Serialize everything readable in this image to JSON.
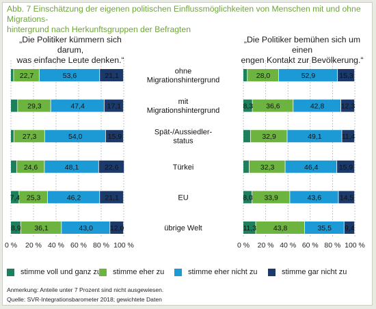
{
  "header": {
    "title_line1": "Abb. 7 Einschätzung der eigenen politischen Einflussmöglichkeiten von Menschen mit und ohne Migrations-",
    "title_line2": "hintergrund nach Herkunftsgruppen der Befragten"
  },
  "colors": {
    "voll": "#1e7f5c",
    "eher": "#6db33f",
    "eher_nicht": "#1c9ad6",
    "gar_nicht": "#1b3a6b"
  },
  "chart_data": [
    {
      "type": "bar",
      "orientation": "horizontal-stacked",
      "title_line1": "„Die Politiker kümmern sich darum,",
      "title_line2": "was einfache Leute denken.“",
      "categories": [
        "ohne Migrationshintergrund",
        "mit Migrationshintergrund",
        "Spät-/Aussiedler-status",
        "Türkei",
        "EU",
        "übrige Welt"
      ],
      "series": [
        {
          "name": "stimme voll und ganz zu",
          "values": [
            2.6,
            6.2,
            2.8,
            5.3,
            7.4,
            8.9
          ],
          "labels": [
            "",
            "",
            "",
            "",
            "7,4",
            "8,9"
          ]
        },
        {
          "name": "stimme eher zu",
          "values": [
            22.7,
            29.3,
            27.3,
            24.6,
            25.3,
            36.1
          ],
          "labels": [
            "22,7",
            "29,3",
            "27,3",
            "24,6",
            "25,3",
            "36,1"
          ]
        },
        {
          "name": "stimme eher nicht zu",
          "values": [
            53.6,
            47.4,
            54.0,
            48.1,
            46.2,
            43.0
          ],
          "labels": [
            "53,6",
            "47,4",
            "54,0",
            "48,1",
            "46,2",
            "43,0"
          ]
        },
        {
          "name": "stimme gar nicht zu",
          "values": [
            21.1,
            17.1,
            15.9,
            22.6,
            21.1,
            12.0
          ],
          "labels": [
            "21,1",
            "17,1",
            "15,9",
            "22,6",
            "21,1",
            "12,0"
          ]
        }
      ],
      "xlim": [
        0,
        100
      ],
      "ticks": [
        "0 %",
        "20 %",
        "40 %",
        "60 %",
        "80 %",
        "100 %"
      ]
    },
    {
      "type": "bar",
      "orientation": "horizontal-stacked",
      "title_line1": "„Die Politiker bemühen sich um einen",
      "title_line2": "engen Kontakt zur Bevölkerung.“",
      "categories": [
        "ohne Migrationshintergrund",
        "mit Migrationshintergrund",
        "Spät-/Aussiedler-status",
        "Türkei",
        "EU",
        "übrige Welt"
      ],
      "series": [
        {
          "name": "stimme voll und ganz zu",
          "values": [
            3.8,
            8.3,
            6.6,
            5.4,
            8.0,
            11.3
          ],
          "labels": [
            "",
            "8,3",
            "",
            "",
            "8,0",
            "11,3"
          ]
        },
        {
          "name": "stimme eher zu",
          "values": [
            28.0,
            36.6,
            32.9,
            32.3,
            33.9,
            43.8
          ],
          "labels": [
            "28,0",
            "36,6",
            "32,9",
            "32,3",
            "33,9",
            "43,8"
          ]
        },
        {
          "name": "stimme eher nicht zu",
          "values": [
            52.9,
            42.8,
            49.1,
            46.4,
            43.6,
            35.5
          ],
          "labels": [
            "52,9",
            "42,8",
            "49,1",
            "46,4",
            "43,6",
            "35,5"
          ]
        },
        {
          "name": "stimme gar nicht zu",
          "values": [
            15.3,
            12.3,
            11.4,
            15.9,
            14.5,
            9.4
          ],
          "labels": [
            "15,3",
            "12,3",
            "11,4",
            "15,9",
            "14,5",
            "9,4"
          ]
        }
      ],
      "xlim": [
        0,
        100
      ],
      "ticks": [
        "0 %",
        "20 %",
        "40 %",
        "60 %",
        "80 %",
        "100 %"
      ]
    }
  ],
  "category_labels": [
    [
      "ohne",
      "Migrationshintergrund"
    ],
    [
      "mit",
      "Migrationshintergrund"
    ],
    [
      "Spät-/Aussiedler-",
      "status"
    ],
    [
      "Türkei"
    ],
    [
      "EU"
    ],
    [
      "übrige Welt"
    ]
  ],
  "legend": [
    {
      "label": "stimme voll und ganz zu",
      "color_key": "voll"
    },
    {
      "label": "stimme eher zu",
      "color_key": "eher"
    },
    {
      "label": "stimme eher nicht zu",
      "color_key": "eher_nicht"
    },
    {
      "label": "stimme gar nicht zu",
      "color_key": "gar_nicht"
    }
  ],
  "footer": {
    "note": "Anmerkung: Anteile unter 7 Prozent sind nicht ausgewiesen.",
    "source": "Quelle: SVR-Integrationsbarometer 2018; gewichtete Daten"
  }
}
